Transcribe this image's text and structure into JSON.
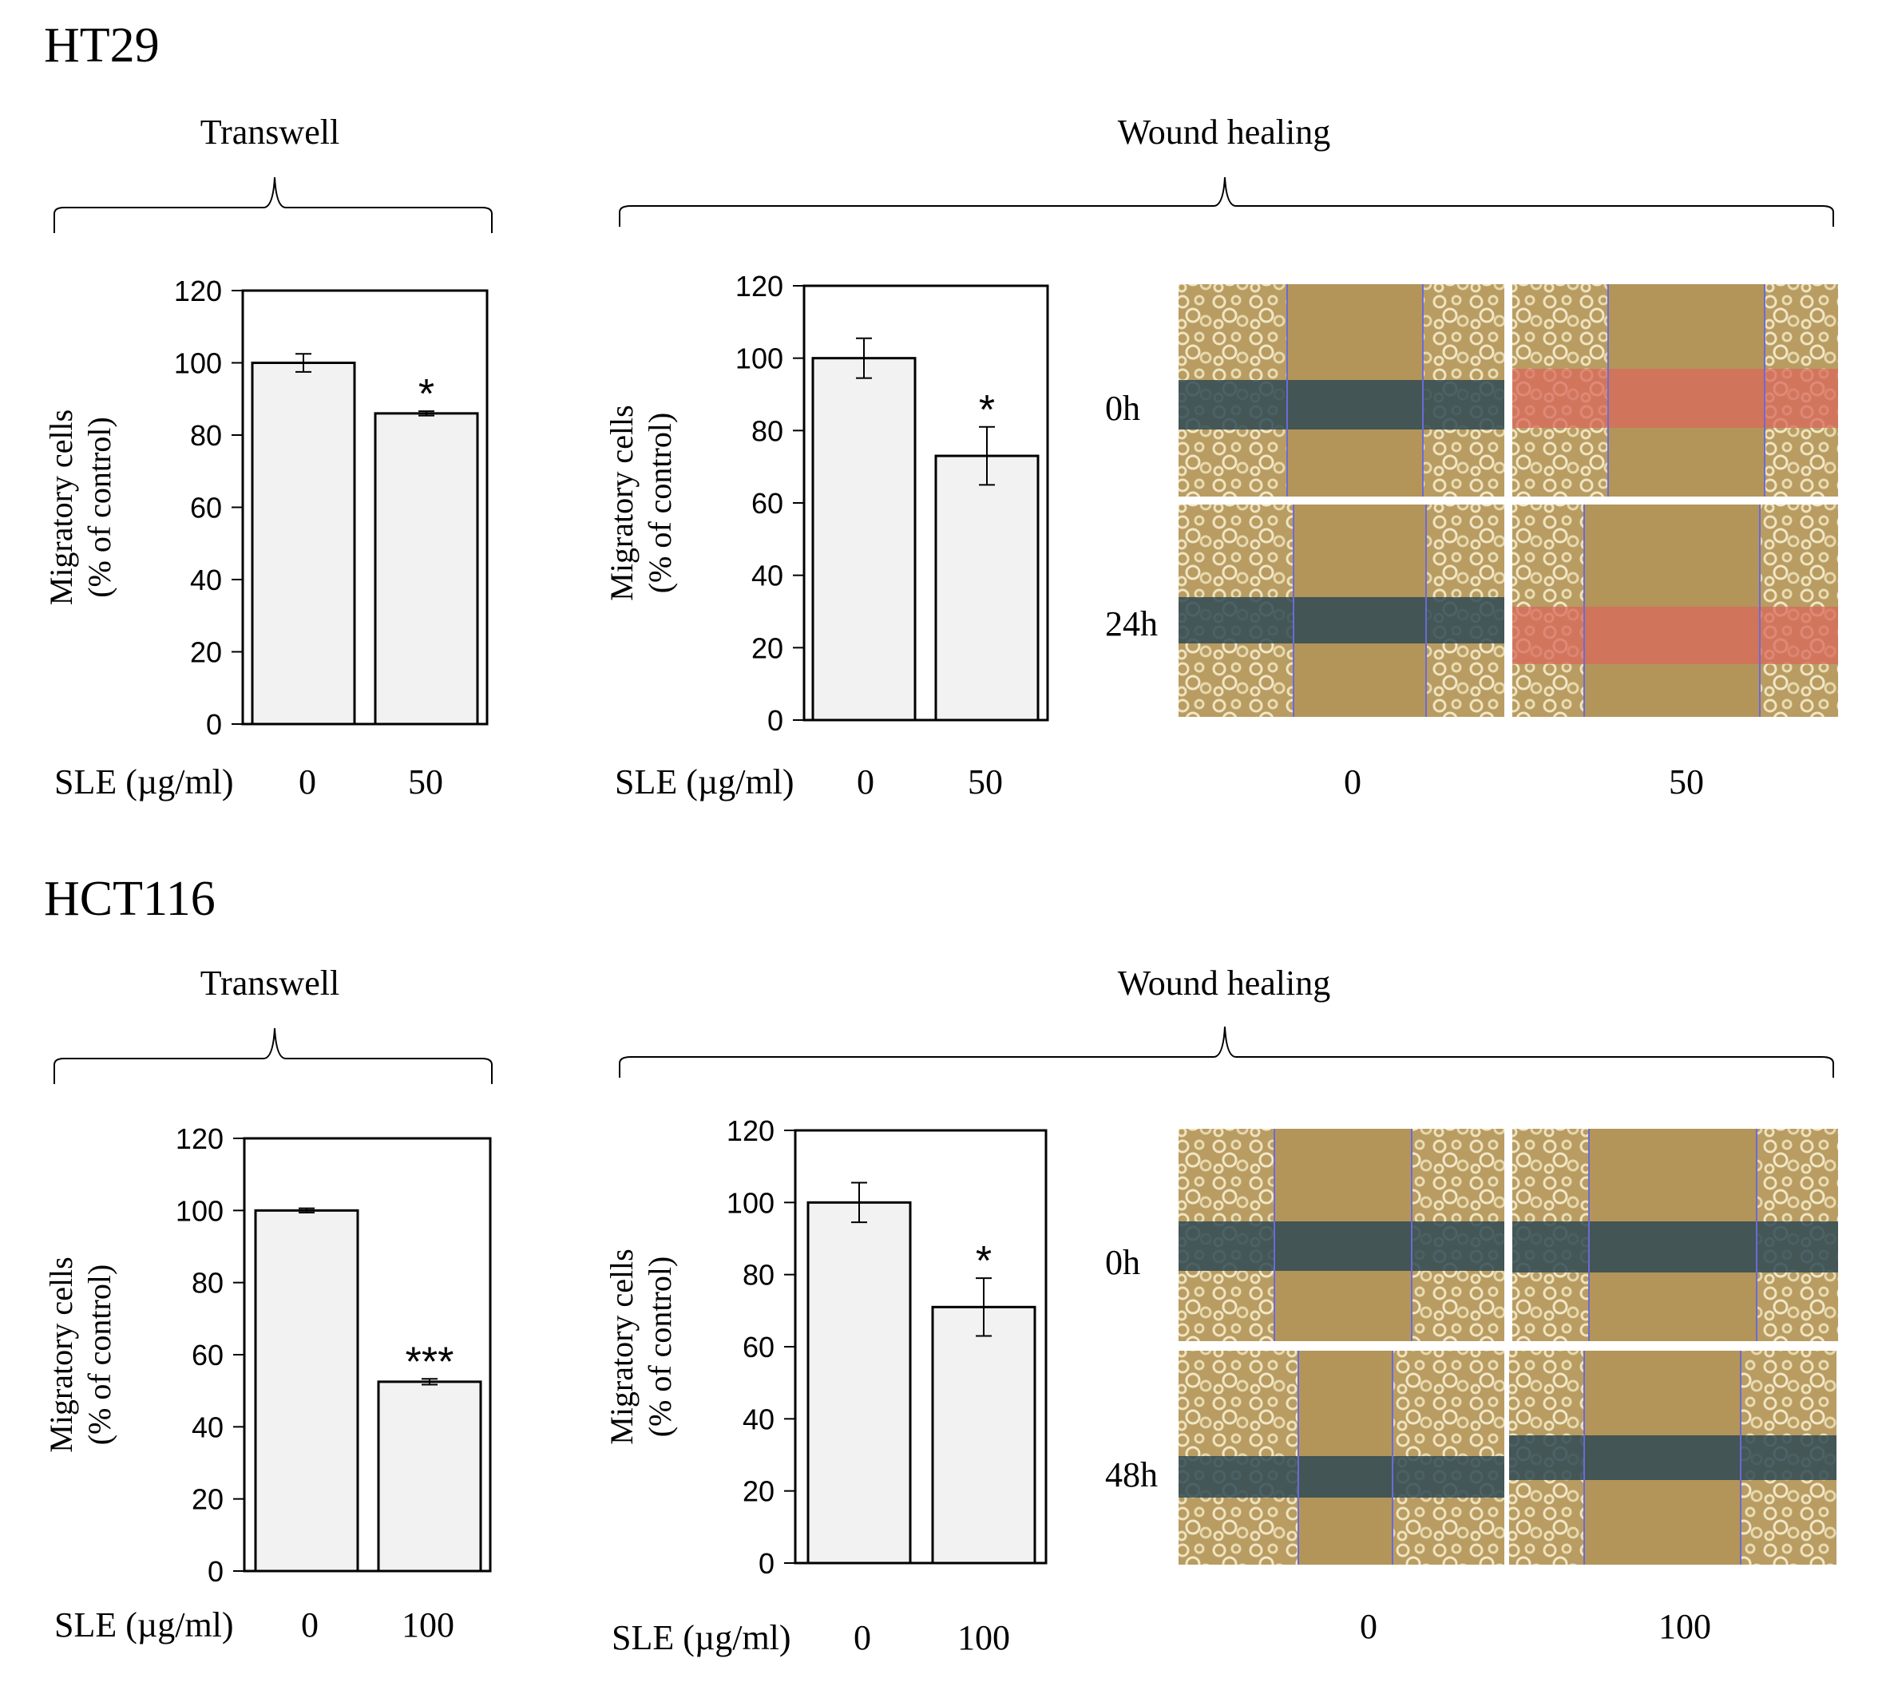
{
  "figure": {
    "panels": [
      {
        "cell_line": "HT29",
        "transwell_label": "Transwell",
        "wound_label": "Wound healing",
        "wound_images": {
          "rows": [
            "0h",
            "24h"
          ],
          "cols": [
            "0",
            "50"
          ],
          "tints": [
            "#2f4a55",
            "#d96a5c"
          ]
        }
      },
      {
        "cell_line": "HCT116",
        "transwell_label": "Transwell",
        "wound_label": "Wound healing",
        "wound_images": {
          "rows": [
            "0h",
            "48h"
          ],
          "cols": [
            "0",
            "100"
          ],
          "tints": [
            "#2f4a55",
            "#2f4a55"
          ]
        }
      }
    ],
    "colors": {
      "bar_fill": "#f2f2f2",
      "axis": "#000000",
      "cell_bg": "#b99c62",
      "cell_blob": "#e8dcb4"
    }
  },
  "chart_data": [
    {
      "type": "bar",
      "title": "HT29 Transwell",
      "ylabel_line1": "Migratory cells",
      "ylabel_line2": "(% of control)",
      "xlabel": "SLE (µg/ml)",
      "categories": [
        "0",
        "50"
      ],
      "values": [
        100,
        86
      ],
      "errors": [
        2.5,
        0.6
      ],
      "annotations": [
        "",
        "*"
      ],
      "ylim": [
        0,
        120
      ],
      "yticks": [
        "0",
        "20",
        "40",
        "60",
        "80",
        "100",
        "120"
      ]
    },
    {
      "type": "bar",
      "title": "HT29 Wound healing",
      "ylabel_line1": "Migratory cells",
      "ylabel_line2": "(% of control)",
      "xlabel": "SLE (µg/ml)",
      "categories": [
        "0",
        "50"
      ],
      "values": [
        100,
        73
      ],
      "errors": [
        5.5,
        8
      ],
      "annotations": [
        "",
        "*"
      ],
      "ylim": [
        0,
        120
      ],
      "yticks": [
        "0",
        "20",
        "40",
        "60",
        "80",
        "100",
        "120"
      ]
    },
    {
      "type": "bar",
      "title": "HCT116 Transwell",
      "ylabel_line1": "Migratory cells",
      "ylabel_line2": "(% of control)",
      "xlabel": "SLE (µg/ml)",
      "categories": [
        "0",
        "100"
      ],
      "values": [
        100,
        52.5
      ],
      "errors": [
        0.6,
        0.8
      ],
      "annotations": [
        "",
        "***"
      ],
      "ylim": [
        0,
        120
      ],
      "yticks": [
        "0",
        "20",
        "40",
        "60",
        "80",
        "100",
        "120"
      ]
    },
    {
      "type": "bar",
      "title": "HCT116 Wound healing",
      "ylabel_line1": "Migratory cells",
      "ylabel_line2": "(% of control)",
      "xlabel": "SLE (µg/ml)",
      "categories": [
        "0",
        "100"
      ],
      "values": [
        100,
        71
      ],
      "errors": [
        5.5,
        8
      ],
      "annotations": [
        "",
        "*"
      ],
      "ylim": [
        0,
        120
      ],
      "yticks": [
        "0",
        "20",
        "40",
        "60",
        "80",
        "100",
        "120"
      ]
    }
  ]
}
